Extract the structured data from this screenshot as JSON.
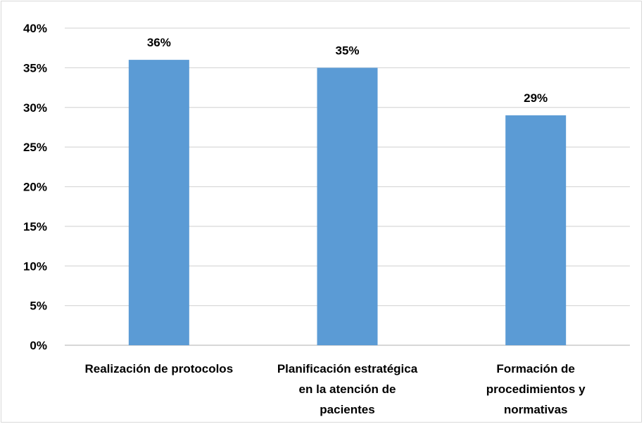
{
  "chart_data": {
    "type": "bar",
    "categories": [
      [
        "Realización  de protocolos"
      ],
      [
        "Planificación estratégica",
        "en la atención de",
        "pacientes"
      ],
      [
        "Formación de",
        "procedimientos y",
        "normativas"
      ]
    ],
    "values": [
      36,
      35,
      29
    ],
    "data_labels": [
      "36%",
      "35%",
      "29%"
    ],
    "ylim": [
      0,
      40
    ],
    "y_ticks": [
      "0%",
      "5%",
      "10%",
      "15%",
      "20%",
      "25%",
      "30%",
      "35%",
      "40%"
    ],
    "y_tick_values": [
      0,
      5,
      10,
      15,
      20,
      25,
      30,
      35,
      40
    ],
    "grid": true,
    "legend": "none",
    "colors": {
      "bar": "#5b9bd5",
      "grid": "#d9d9d9",
      "axis": "#bfbfbf"
    }
  }
}
